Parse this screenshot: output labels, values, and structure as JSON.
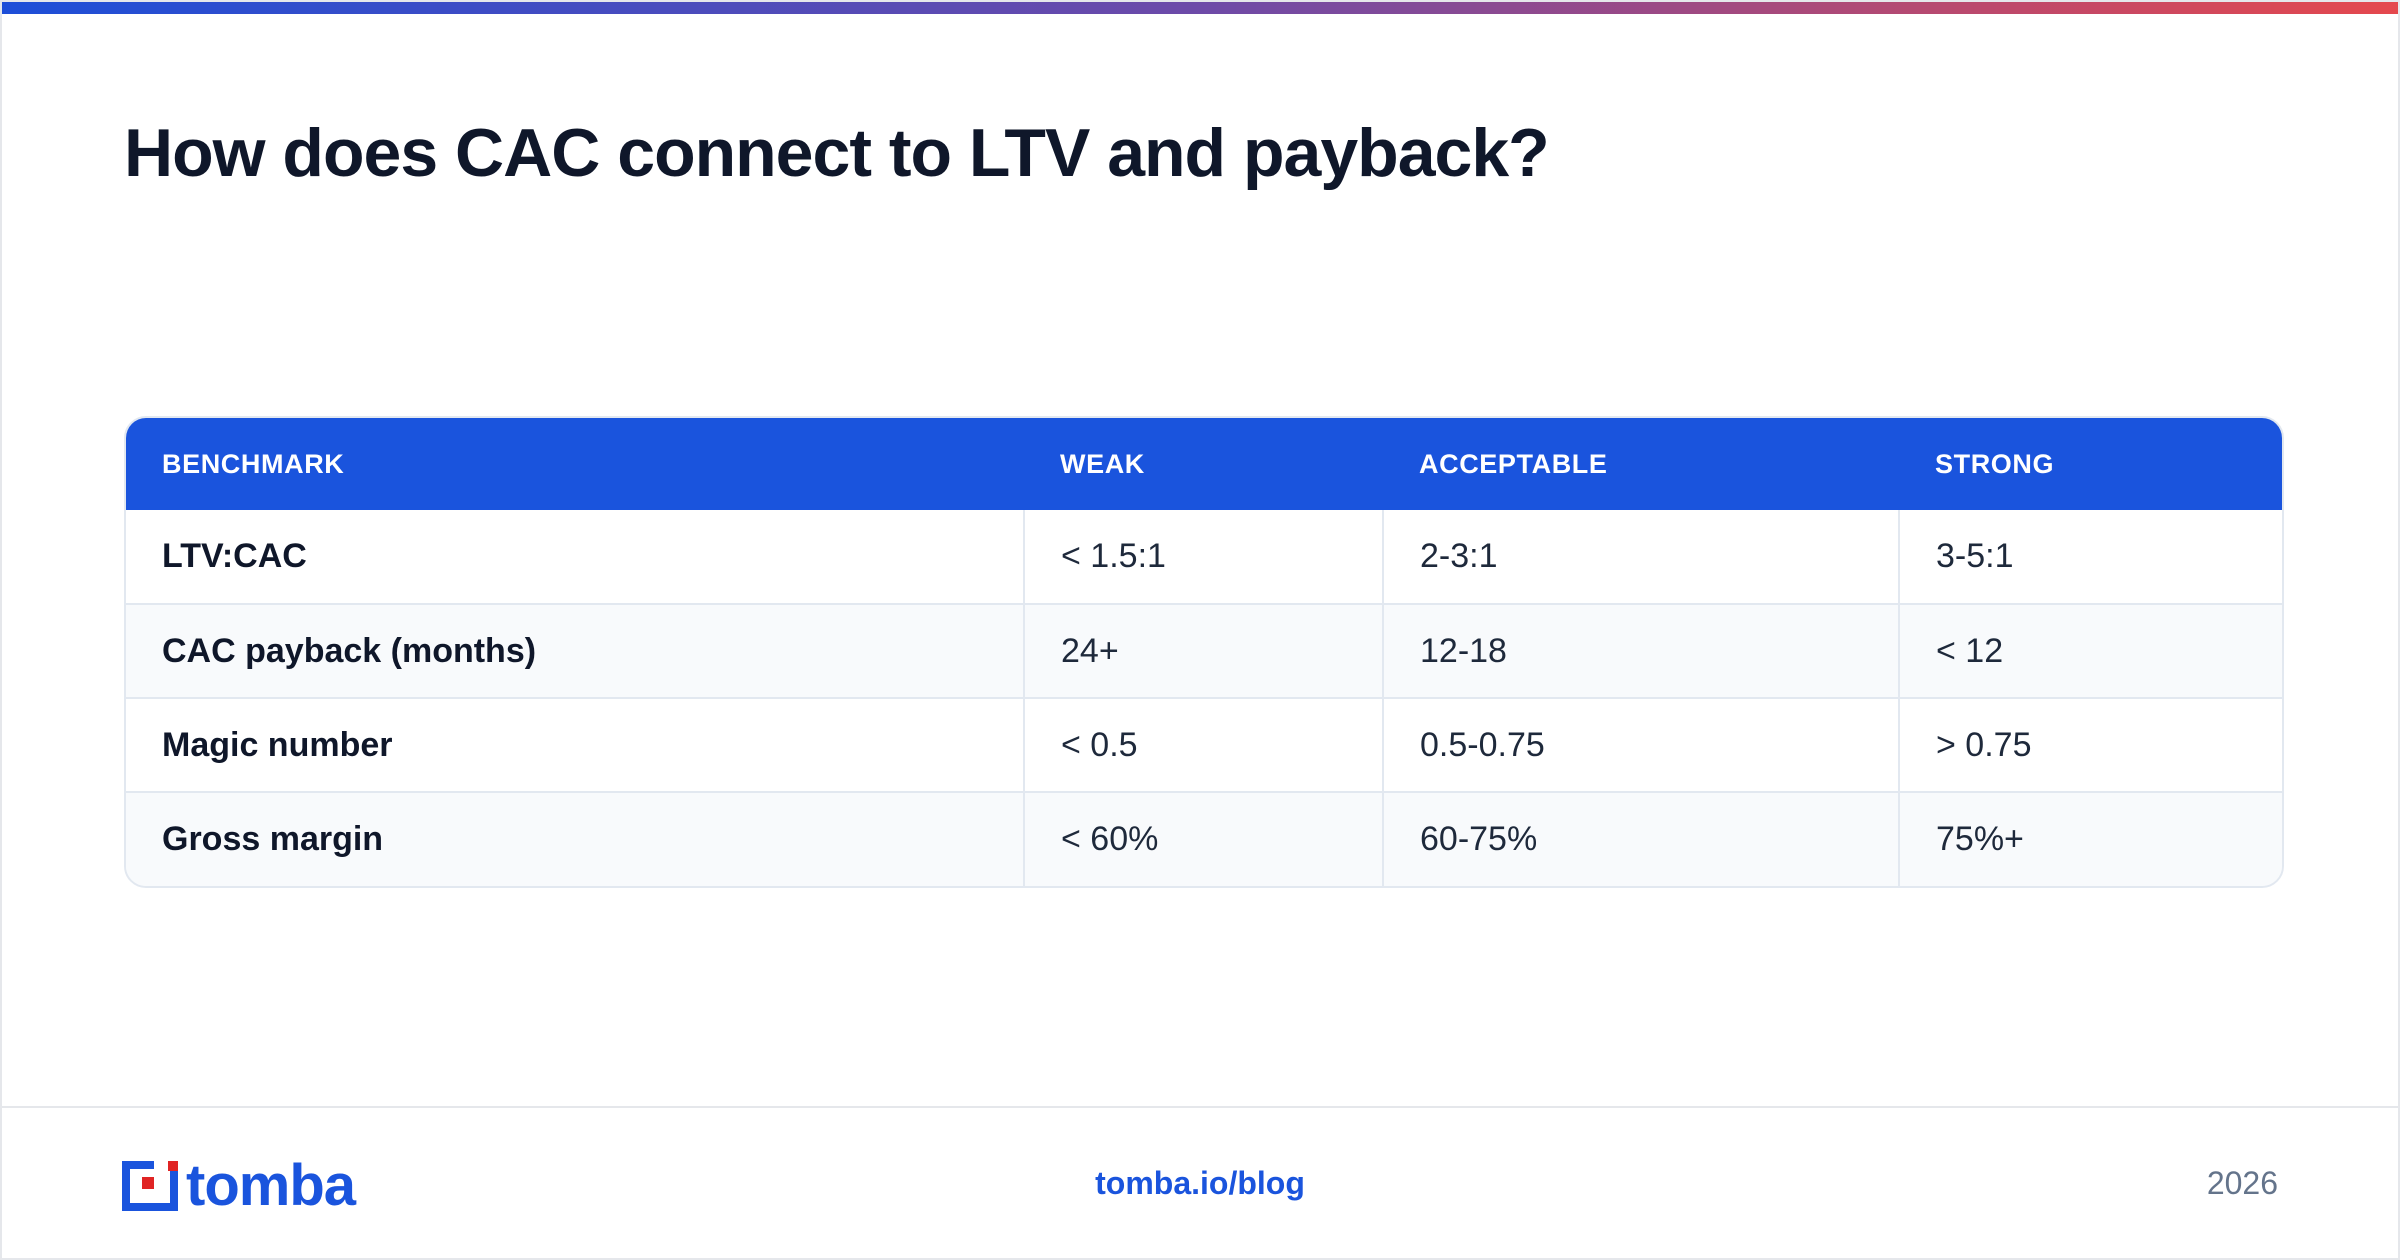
{
  "title": "How does CAC connect to LTV and payback?",
  "table": {
    "headers": [
      "BENCHMARK",
      "WEAK",
      "ACCEPTABLE",
      "STRONG"
    ],
    "rows": [
      [
        "LTV:CAC",
        "< 1.5:1",
        "2-3:1",
        "3-5:1"
      ],
      [
        "CAC payback (months)",
        "24+",
        "12-18",
        "< 12"
      ],
      [
        "Magic number",
        "< 0.5",
        "0.5-0.75",
        "> 0.75"
      ],
      [
        "Gross margin",
        "< 60%",
        "60-75%",
        "75%+"
      ]
    ]
  },
  "footer": {
    "logo_text": "tomba",
    "link": "tomba.io/blog",
    "year": "2026"
  },
  "colors": {
    "accent": "#1a54dd",
    "logo_red": "#e02424",
    "gradient_start": "#1d4ed8",
    "gradient_end": "#e5484d"
  }
}
